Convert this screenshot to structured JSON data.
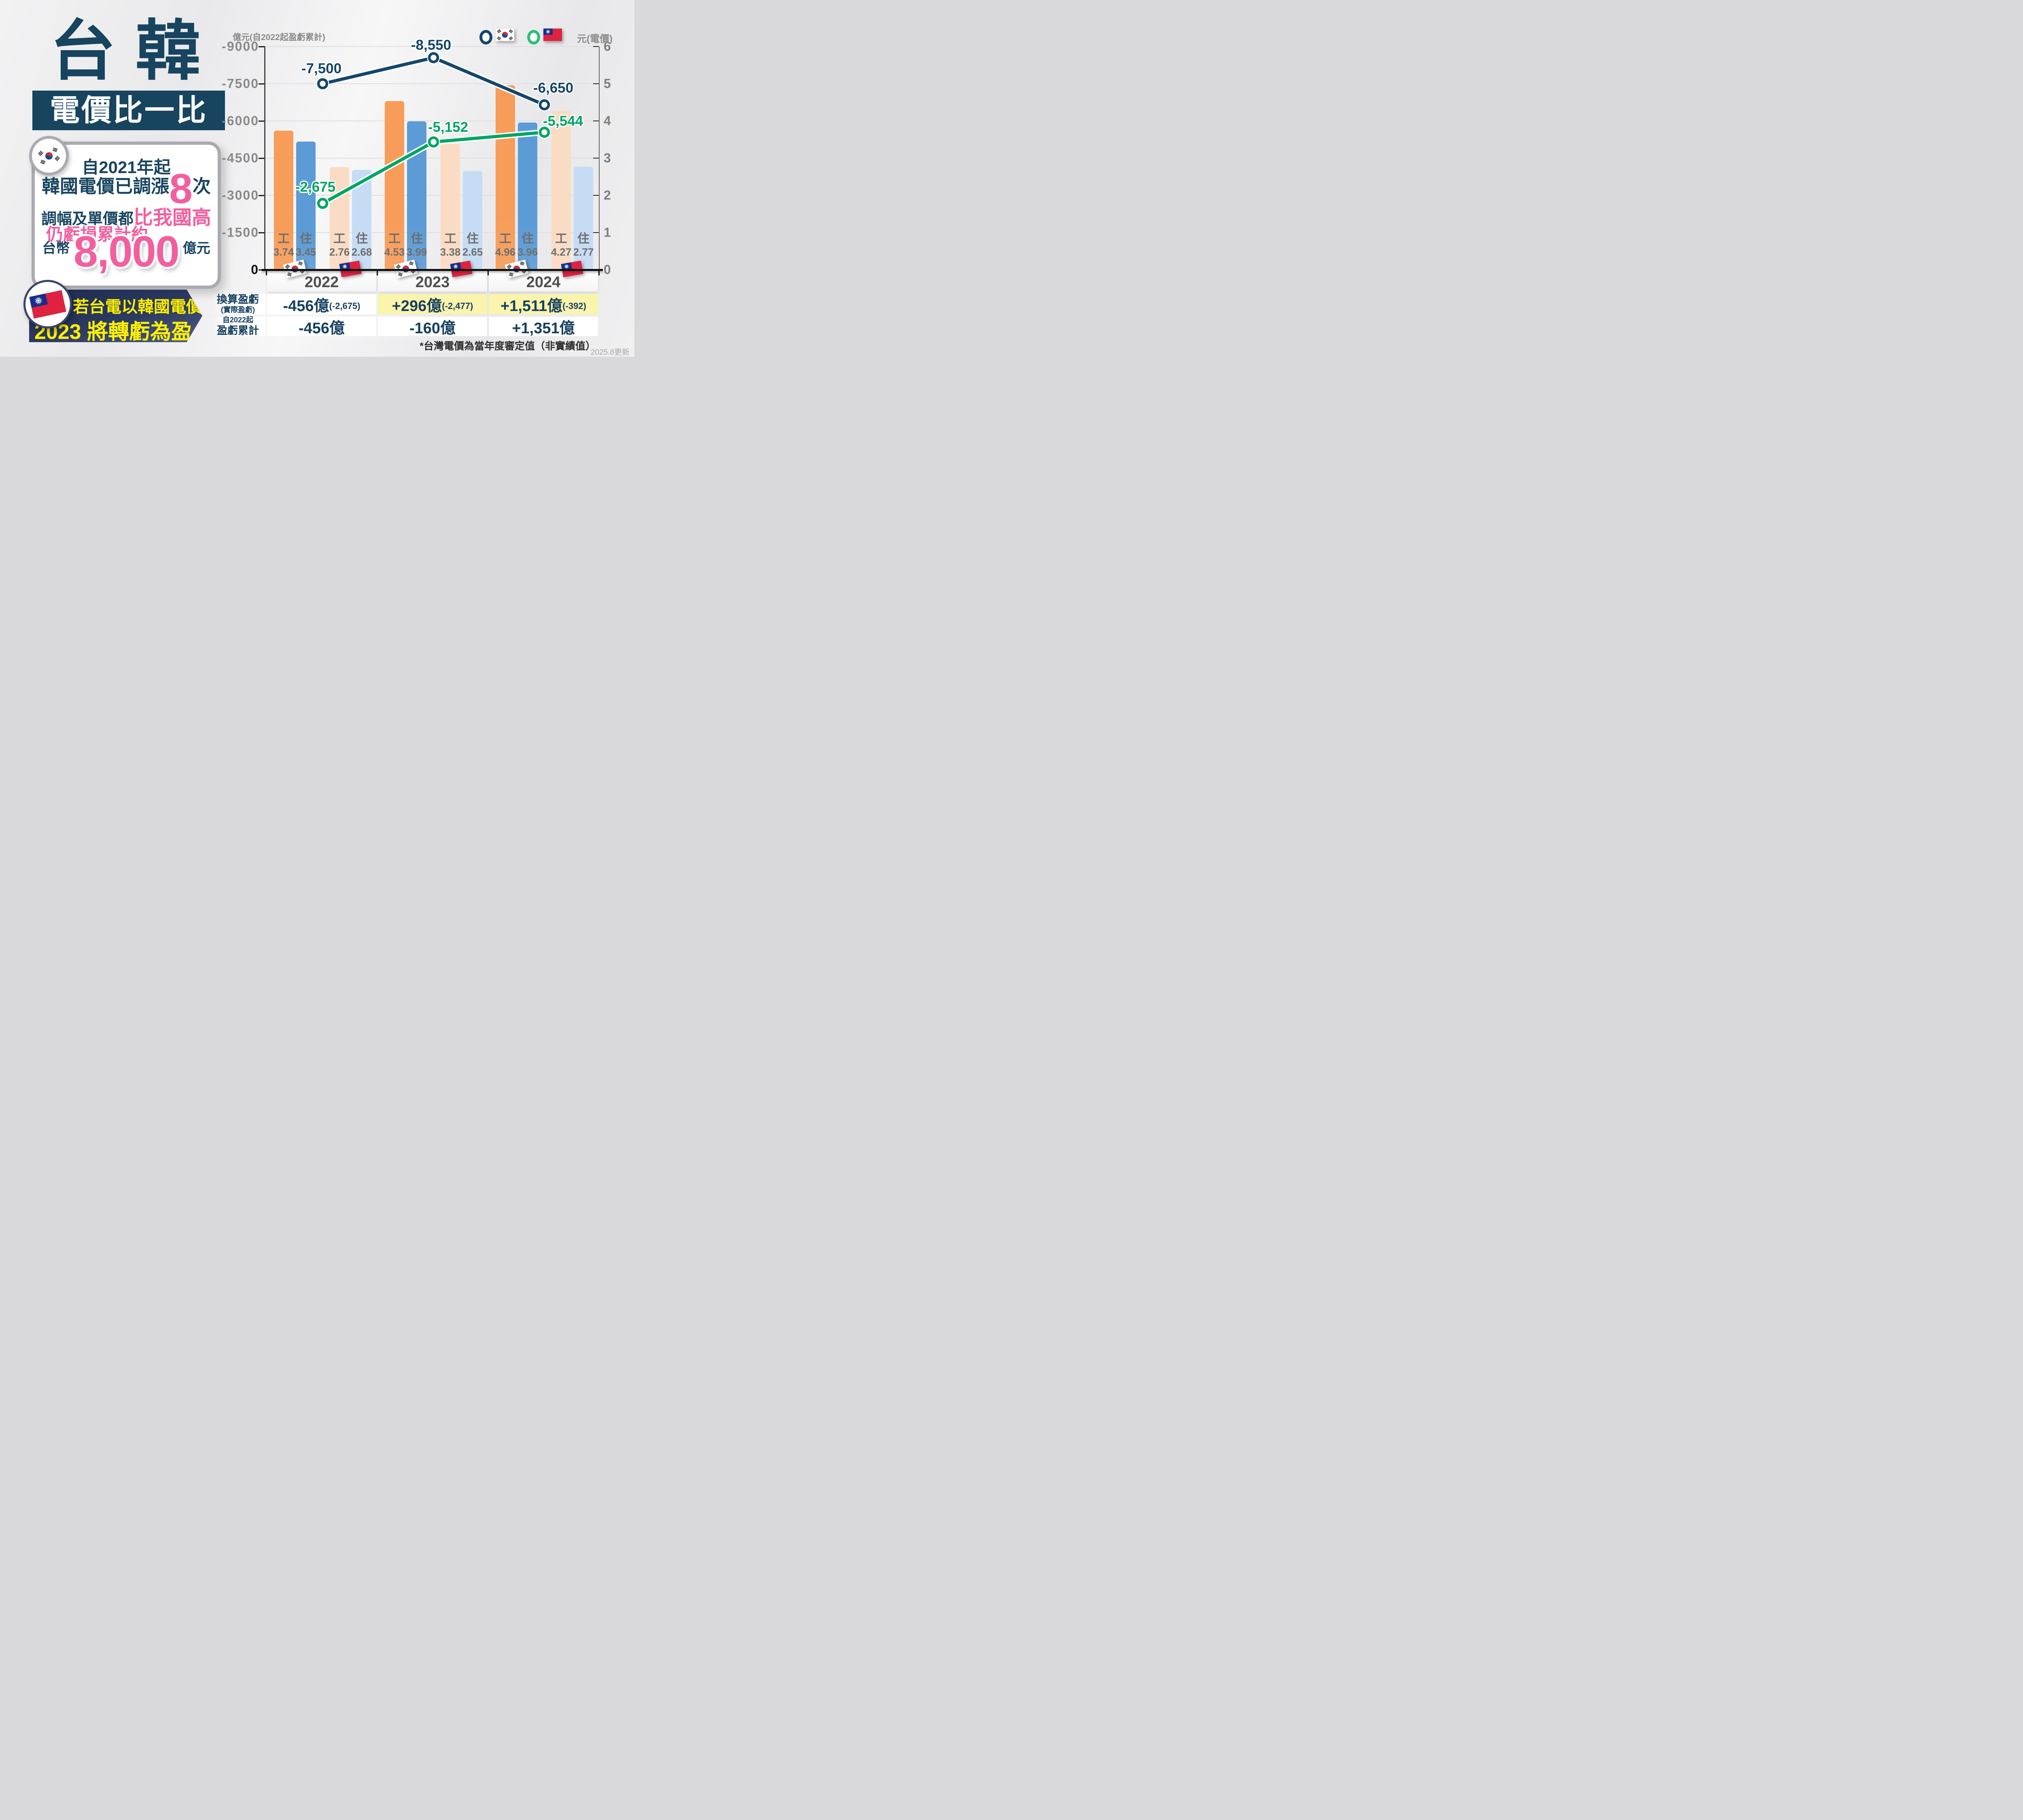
{
  "page": {
    "footnote": "*台灣電價為當年度審定值（非實績值）",
    "updated": "2025.8更新"
  },
  "title": {
    "main": "台 韓",
    "sub": "電價比一比"
  },
  "korea_card": {
    "l1": "自2021年起",
    "l2a": "韓國電價已調漲",
    "l2b": "8",
    "l2c": "次",
    "l3a": "調幅及單價都",
    "l3b": "比我國高",
    "l4": "仍虧損累計約",
    "l5a": "台幣",
    "l5b": "8,000",
    "l5c": "億元"
  },
  "taiwan_banner": {
    "l1": "若台電以韓國電價",
    "l2a": "2023",
    "l2b": "將轉虧為盈"
  },
  "chart_data": {
    "type": "bar+line",
    "categories": [
      "2022",
      "2023",
      "2024"
    ],
    "left_axis": {
      "title": "億元(自2022起盈虧累計)",
      "ticks": [
        "-9000",
        "-7500",
        "-6000",
        "-4500",
        "-3000",
        "-1500",
        "0"
      ],
      "min": -9000,
      "max": 0
    },
    "right_axis": {
      "title": "元(電價)",
      "ticks": [
        "6",
        "5",
        "4",
        "3",
        "2",
        "1",
        "0"
      ],
      "min": 0,
      "max": 6
    },
    "bar_series": [
      {
        "name": "korea-industrial",
        "country": "korea",
        "label": "工",
        "color": "#F89C59",
        "values": [
          3.74,
          4.53,
          4.96
        ]
      },
      {
        "name": "korea-residential",
        "country": "korea",
        "label": "住",
        "color": "#5C9BD6",
        "values": [
          3.45,
          3.99,
          3.96
        ]
      },
      {
        "name": "taiwan-industrial",
        "country": "taiwan",
        "label": "工",
        "color": "#FADCC4",
        "values": [
          2.76,
          3.38,
          4.27
        ]
      },
      {
        "name": "taiwan-residential",
        "country": "taiwan",
        "label": "住",
        "color": "#C5DCF4",
        "values": [
          2.68,
          2.65,
          2.77
        ]
      }
    ],
    "line_series": [
      {
        "name": "korea-cumulative-loss",
        "flag": "korea",
        "color": "#15466B",
        "values": [
          -7500,
          -8550,
          -6650
        ],
        "labels": [
          "-7,500",
          "-8,550",
          "-6,650"
        ]
      },
      {
        "name": "taiwan-cumulative-loss",
        "flag": "taiwan",
        "color": "#00A564",
        "values": [
          -2675,
          -5152,
          -5544
        ],
        "labels": [
          "-2,675",
          "-5,152",
          "-5,544"
        ]
      }
    ],
    "legend": [
      {
        "name": "korea-line-legend",
        "ring_color": "#15466B",
        "flag": "korea"
      },
      {
        "name": "taiwan-line-legend",
        "ring_color": "#2BBF79",
        "flag": "taiwan"
      }
    ]
  },
  "table": {
    "rows": [
      {
        "label_top": "換算盈虧",
        "label_bottom": "(實際盈虧)",
        "top_big": true,
        "cells": [
          {
            "main": "-456億",
            "sub": "(-2,675)",
            "highlight": false
          },
          {
            "main": "+296億",
            "sub": "(-2,477)",
            "highlight": true
          },
          {
            "main": "+1,511億",
            "sub": "(-392)",
            "highlight": true
          }
        ]
      },
      {
        "label_top": "自2022起",
        "label_bottom": "盈虧累計",
        "top_big": false,
        "cells": [
          {
            "main": "-456億",
            "sub": "",
            "highlight": false
          },
          {
            "main": "-160億",
            "sub": "",
            "highlight": false
          },
          {
            "main": "+1,351億",
            "sub": "",
            "highlight": false
          }
        ]
      }
    ]
  }
}
